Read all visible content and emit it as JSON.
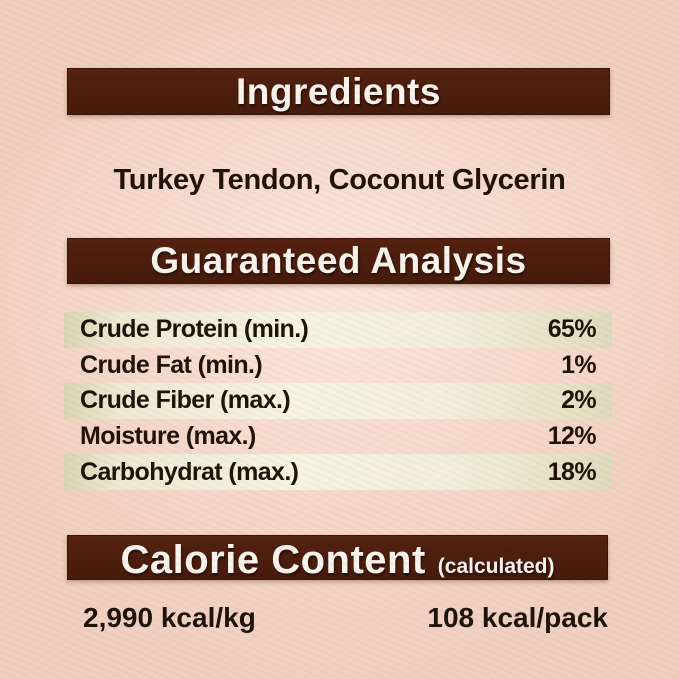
{
  "colors": {
    "bar_brown": "#4e1f0e",
    "bar_text": "#f8f3ec",
    "bg_center": "#f5d9ca",
    "bg_edge": "#e9c5b4",
    "row_green_edge": "#d7d6b4",
    "row_green_mid": "#f5f3e2",
    "text_dark": "#20130a"
  },
  "sections": {
    "ingredients": {
      "title": "Ingredients",
      "content": "Turkey Tendon, Coconut Glycerin"
    },
    "guaranteed_analysis": {
      "title": "Guaranteed Analysis",
      "rows": [
        {
          "label": "Crude Protein (min.)",
          "value": "65%"
        },
        {
          "label": "Crude Fat (min.)",
          "value": "1%"
        },
        {
          "label": "Crude Fiber (max.)",
          "value": "2%"
        },
        {
          "label": "Moisture (max.)",
          "value": "12%"
        },
        {
          "label": "Carbohydrat (max.)",
          "value": "18%"
        }
      ]
    },
    "calorie_content": {
      "title": "Calorie Content",
      "subtitle": "(calculated)",
      "per_kg": "2,990 kcal/kg",
      "per_pack": "108 kcal/pack"
    }
  }
}
